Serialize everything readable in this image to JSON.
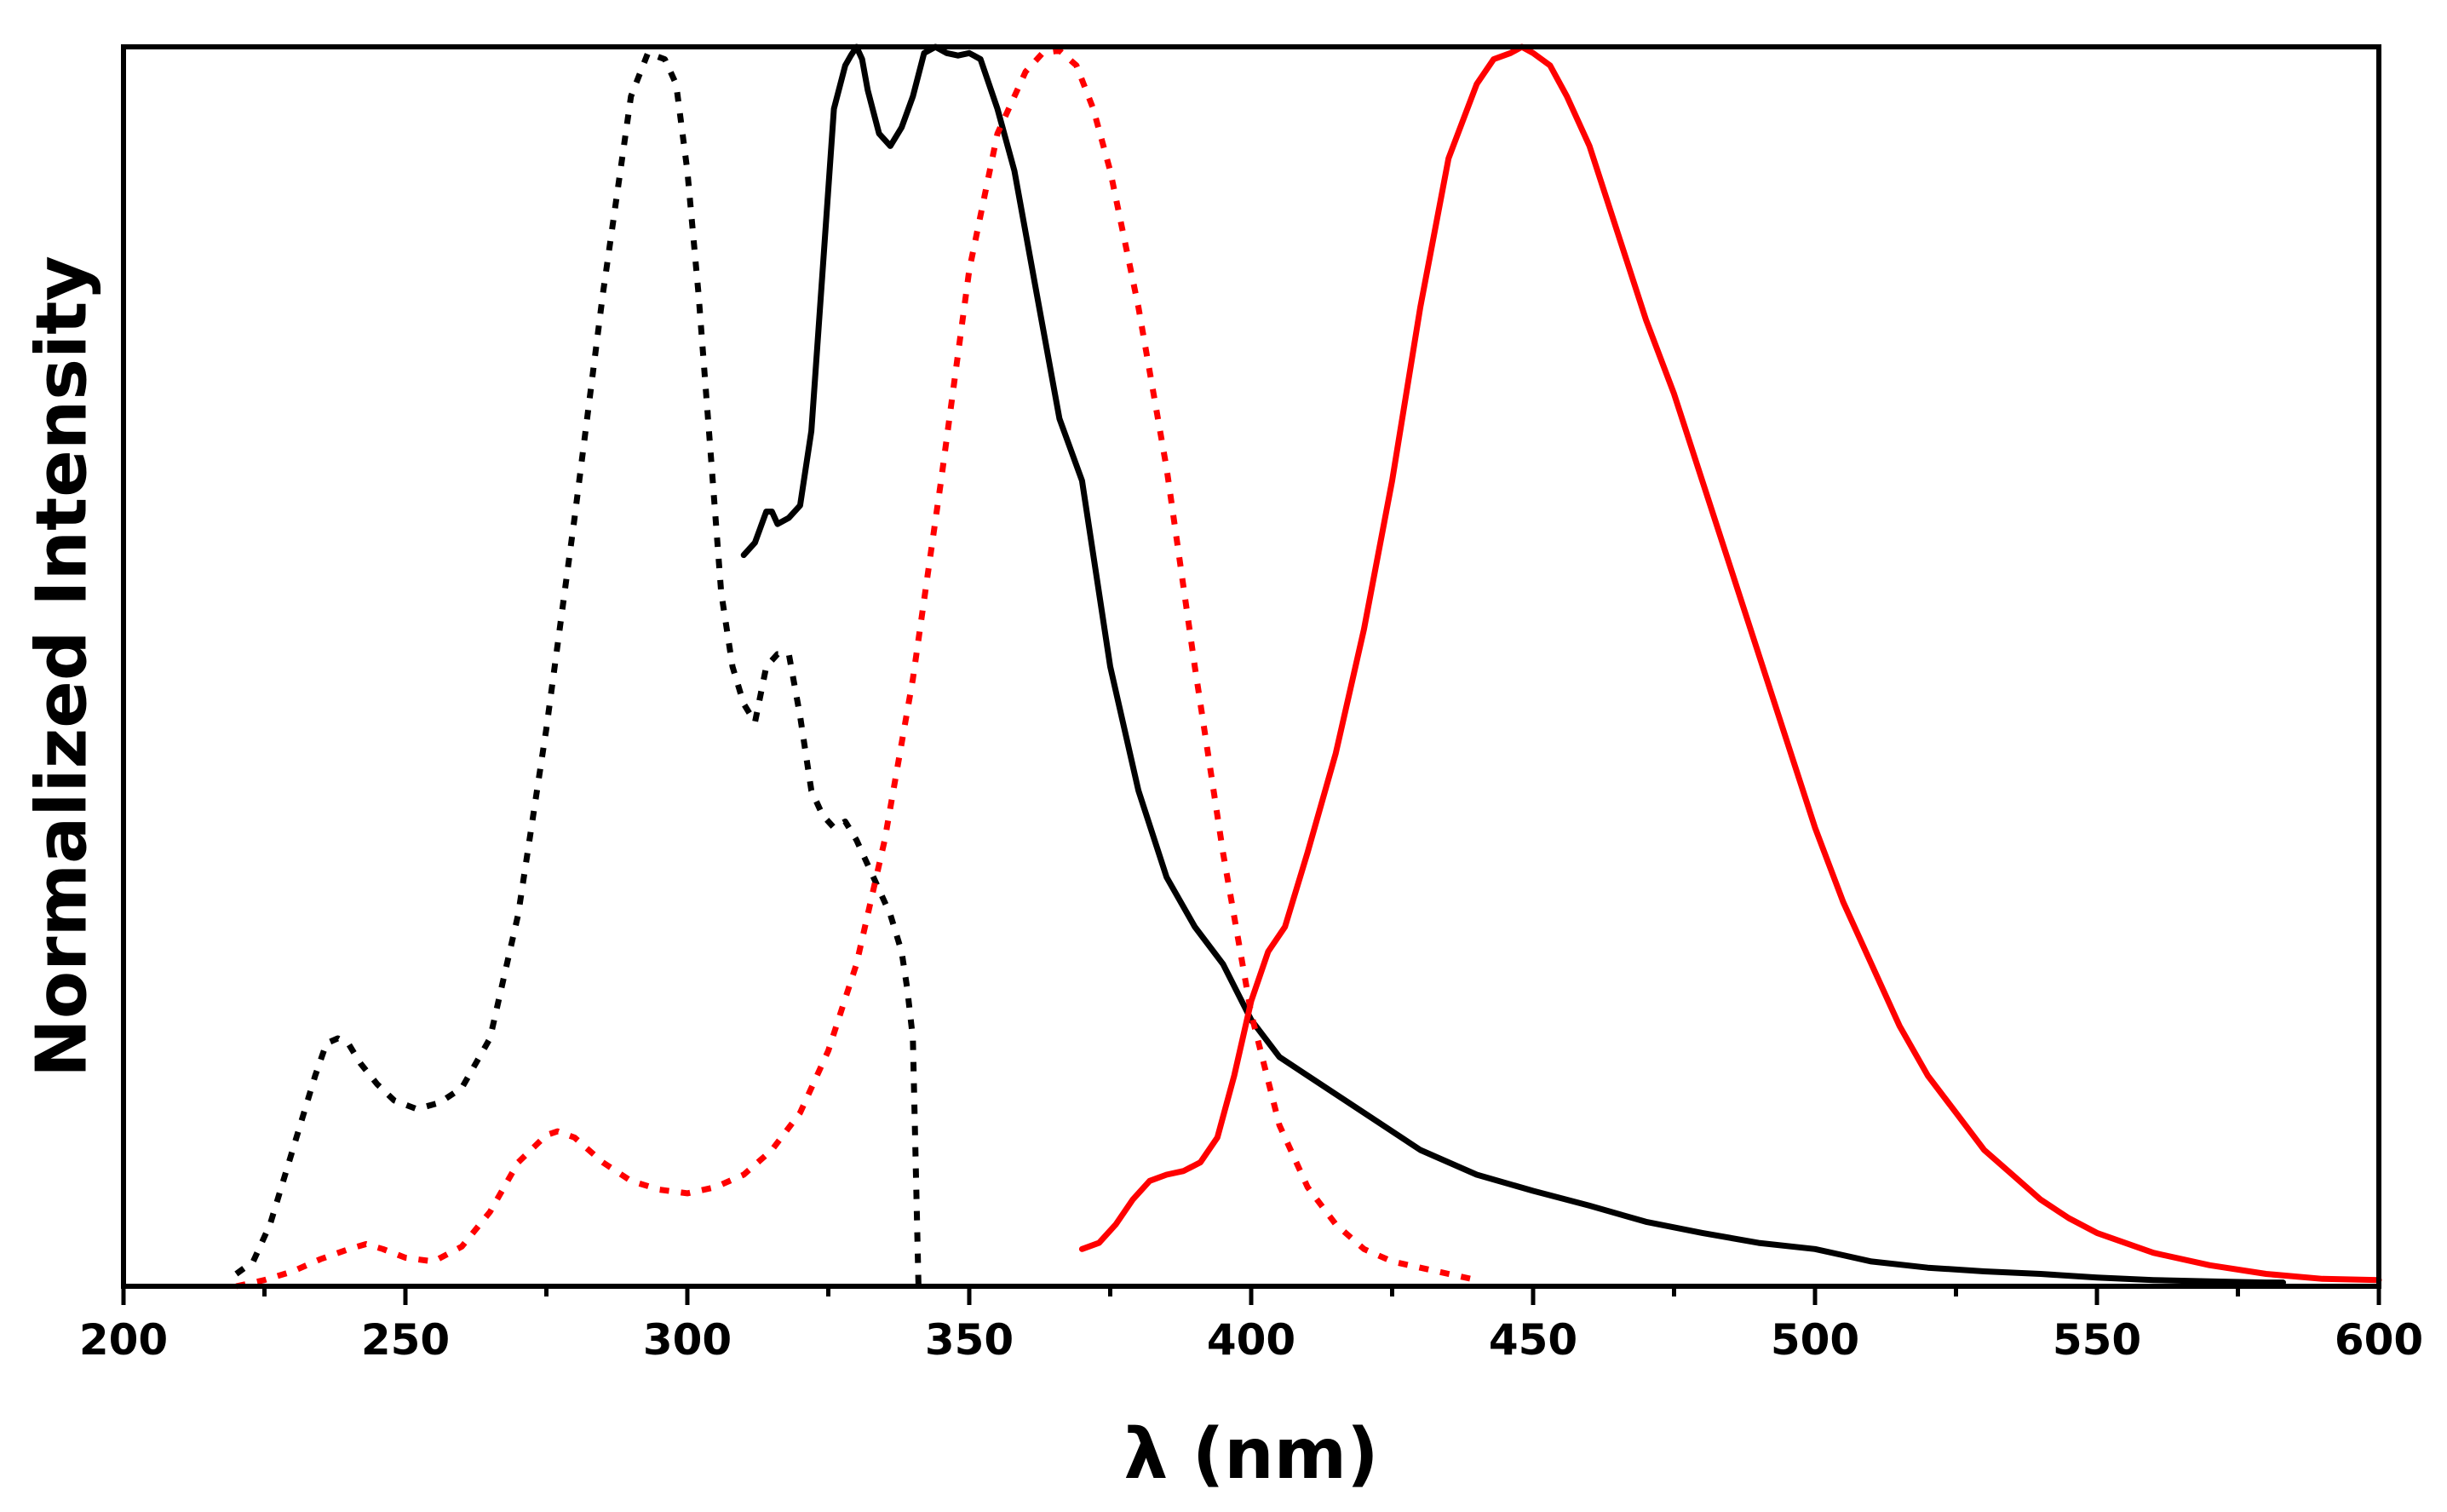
{
  "chart_data": {
    "type": "line",
    "title": "",
    "xlabel": "λ (nm)",
    "ylabel": "Normalized Intensity",
    "xlim": [
      200,
      600
    ],
    "ylim": [
      0,
      1.0
    ],
    "x_ticks": [
      200,
      250,
      300,
      350,
      400,
      450,
      500,
      550,
      600
    ],
    "x_tick_labels": [
      "200",
      "250",
      "300",
      "350",
      "400",
      "450",
      "500",
      "550",
      "600"
    ],
    "y_tick_labels": [],
    "grid": false,
    "legend": null,
    "series": [
      {
        "name": "excitation-black-dotted",
        "color": "#000000",
        "style": "dotted",
        "x": [
          220,
          223,
          226,
          230,
          234,
          236,
          238,
          240,
          242,
          245,
          248,
          252,
          256,
          260,
          265,
          270,
          275,
          280,
          285,
          290,
          293,
          296,
          298,
          300,
          302,
          304,
          306,
          308,
          310,
          312,
          314,
          316,
          318,
          320,
          322,
          324,
          326,
          328,
          330,
          333,
          336,
          338,
          339,
          340,
          341
        ],
        "y": [
          0.01,
          0.02,
          0.05,
          0.11,
          0.17,
          0.196,
          0.2,
          0.195,
          0.18,
          0.163,
          0.15,
          0.143,
          0.148,
          0.16,
          0.2,
          0.3,
          0.45,
          0.62,
          0.8,
          0.96,
          0.995,
          0.99,
          0.97,
          0.9,
          0.8,
          0.68,
          0.56,
          0.5,
          0.47,
          0.455,
          0.5,
          0.51,
          0.51,
          0.46,
          0.4,
          0.38,
          0.37,
          0.375,
          0.36,
          0.33,
          0.3,
          0.27,
          0.24,
          0.2,
          0.0
        ]
      },
      {
        "name": "emission-black-solid",
        "color": "#000000",
        "style": "solid",
        "x": [
          310,
          312,
          314,
          315,
          316,
          318,
          320,
          322,
          324,
          326,
          328,
          329,
          330,
          331,
          332,
          334,
          336,
          338,
          340,
          342,
          344,
          346,
          348,
          350,
          352,
          355,
          358,
          362,
          366,
          370,
          375,
          380,
          385,
          390,
          395,
          400,
          405,
          410,
          420,
          430,
          440,
          450,
          460,
          470,
          480,
          490,
          500,
          510,
          520,
          530,
          540,
          550,
          560,
          570,
          580,
          583
        ],
        "y": [
          0.59,
          0.6,
          0.625,
          0.625,
          0.615,
          0.62,
          0.63,
          0.69,
          0.82,
          0.95,
          0.985,
          0.993,
          1.0,
          0.99,
          0.965,
          0.93,
          0.92,
          0.935,
          0.96,
          0.995,
          1.0,
          0.995,
          0.993,
          0.995,
          0.99,
          0.95,
          0.9,
          0.8,
          0.7,
          0.65,
          0.5,
          0.4,
          0.33,
          0.29,
          0.26,
          0.215,
          0.185,
          0.17,
          0.14,
          0.11,
          0.09,
          0.077,
          0.065,
          0.052,
          0.043,
          0.035,
          0.03,
          0.02,
          0.015,
          0.012,
          0.01,
          0.007,
          0.005,
          0.004,
          0.003,
          0.003
        ]
      },
      {
        "name": "excitation-red-dotted",
        "color": "#ff0000",
        "style": "dotted",
        "x": [
          220,
          225,
          230,
          235,
          240,
          243,
          246,
          250,
          255,
          260,
          265,
          270,
          275,
          277,
          280,
          285,
          290,
          295,
          300,
          305,
          310,
          315,
          320,
          325,
          330,
          335,
          340,
          345,
          350,
          355,
          360,
          363,
          366,
          369,
          372,
          375,
          380,
          385,
          390,
          395,
          400,
          405,
          410,
          415,
          420,
          425,
          430,
          435,
          440
        ],
        "y": [
          0.0,
          0.005,
          0.012,
          0.022,
          0.03,
          0.034,
          0.03,
          0.023,
          0.02,
          0.032,
          0.06,
          0.1,
          0.122,
          0.125,
          0.12,
          0.1,
          0.085,
          0.078,
          0.075,
          0.08,
          0.09,
          0.11,
          0.14,
          0.19,
          0.26,
          0.36,
          0.49,
          0.65,
          0.82,
          0.93,
          0.98,
          0.995,
          0.997,
          0.985,
          0.95,
          0.9,
          0.79,
          0.66,
          0.5,
          0.35,
          0.22,
          0.13,
          0.08,
          0.05,
          0.03,
          0.02,
          0.015,
          0.01,
          0.005
        ]
      },
      {
        "name": "emission-red-solid",
        "color": "#ff0000",
        "style": "solid",
        "x": [
          370,
          373,
          376,
          379,
          382,
          385,
          388,
          391,
          394,
          397,
          400,
          403,
          406,
          410,
          415,
          420,
          425,
          430,
          435,
          440,
          443,
          446,
          448,
          450,
          453,
          456,
          460,
          465,
          470,
          475,
          480,
          485,
          490,
          495,
          500,
          505,
          510,
          515,
          520,
          525,
          530,
          535,
          540,
          545,
          550,
          560,
          570,
          580,
          590,
          600
        ],
        "y": [
          0.03,
          0.035,
          0.05,
          0.07,
          0.085,
          0.09,
          0.093,
          0.1,
          0.12,
          0.17,
          0.23,
          0.27,
          0.29,
          0.35,
          0.43,
          0.53,
          0.65,
          0.79,
          0.91,
          0.97,
          0.99,
          0.995,
          1.0,
          0.995,
          0.985,
          0.96,
          0.92,
          0.85,
          0.78,
          0.72,
          0.65,
          0.58,
          0.51,
          0.44,
          0.37,
          0.31,
          0.26,
          0.21,
          0.17,
          0.14,
          0.11,
          0.09,
          0.07,
          0.055,
          0.043,
          0.027,
          0.017,
          0.01,
          0.006,
          0.005
        ]
      }
    ]
  }
}
